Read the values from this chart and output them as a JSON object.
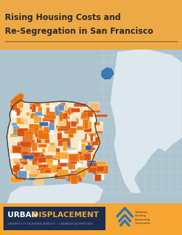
{
  "title_line1": "Rising Housing Costs and",
  "title_line2": "Re-Segregation in San Francisco",
  "title_fontsize": 8.5,
  "title_color": "#2d2926",
  "title_bg_color": "#f5a633",
  "title_bg_alpha": 0.88,
  "map_bg_color": "#adc4cf",
  "page_bg_color": "#adc4cf",
  "footer_bg_color": "#f5a633",
  "urban_bg_color": "#1c2d4f",
  "urban_text_color": "#ffffff",
  "displacement_text_color": "#f5a633",
  "footer_subtext": "UNIVERSITY OF CALIFORNIA, BERKELEY  |  URBANDISPLACEMENT.ORG",
  "footer_subtext_color": "#8899bb",
  "sf_fill_colors": [
    "#d94f0a",
    "#e8720c",
    "#f5a020",
    "#f7c97a",
    "#f5e8c8",
    "#ffffff",
    "#5b9bd5",
    "#2860a8"
  ],
  "sf_probs": [
    0.28,
    0.22,
    0.16,
    0.1,
    0.08,
    0.06,
    0.06,
    0.04
  ],
  "divider_color": "#8b6510",
  "logo_color": "#2e75b6",
  "chp_text_color": "#2d2926",
  "east_bay_color": "#dde8ee",
  "peninsula_color": "#dde8ee",
  "water_color": "#adc4cf",
  "road_color": "#c5d5db"
}
